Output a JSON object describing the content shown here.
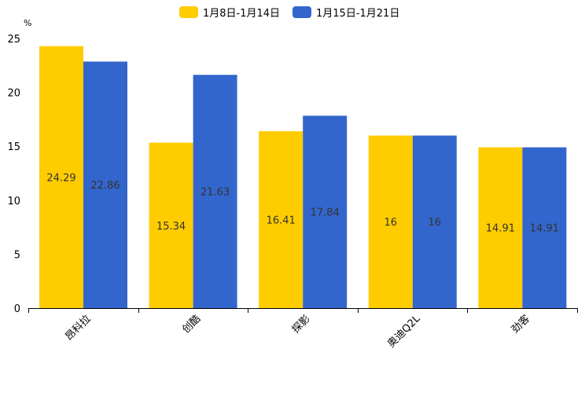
{
  "chart_data": {
    "type": "bar",
    "title": "",
    "xlabel": "",
    "ylabel": "%",
    "ylim": [
      0,
      25
    ],
    "yticks": [
      0,
      5,
      10,
      15,
      20,
      25
    ],
    "grid": false,
    "legend_position": "top-center",
    "categories": [
      "昂科拉",
      "创酷",
      "探影",
      "奥迪Q2L",
      "劲客"
    ],
    "series": [
      {
        "name": "1月8日-1月14日",
        "color": "#ffcc00",
        "values": [
          24.29,
          15.34,
          16.41,
          16,
          14.91
        ]
      },
      {
        "name": "1月15日-1月21日",
        "color": "#3366cc",
        "values": [
          22.86,
          21.63,
          17.84,
          16,
          14.91
        ]
      }
    ]
  }
}
